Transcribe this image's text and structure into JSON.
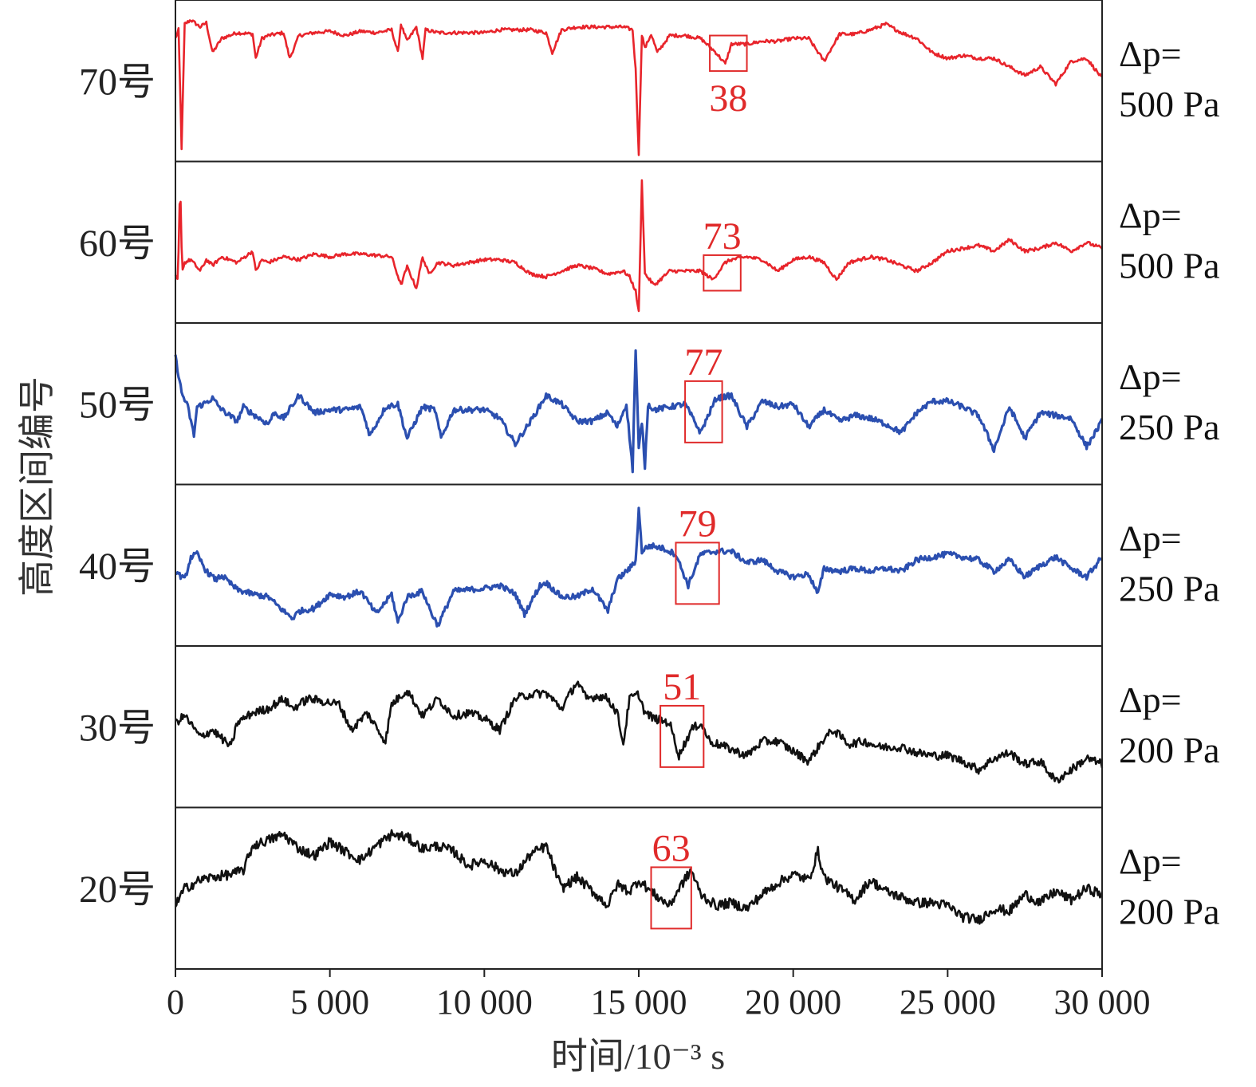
{
  "chart_data": {
    "type": "line",
    "xlabel": "时间/10⁻³ s",
    "ylabel": "高度区间编号",
    "xlim": [
      0,
      30000
    ],
    "x_ticks": [
      "0",
      "5 000",
      "10 000",
      "15 000",
      "20 000",
      "25 000",
      "30 000"
    ],
    "x_tick_values": [
      0,
      5000,
      10000,
      15000,
      20000,
      25000,
      30000
    ],
    "grid": false,
    "colors": {
      "red": "#e8242b",
      "blue": "#2b4fb0",
      "black": "#111111",
      "box": "#e02a2a"
    },
    "panels": [
      {
        "row_label": "70号",
        "pressure_line1": "Δp=",
        "pressure_line2": "500 Pa",
        "color": "red",
        "annotation": "38",
        "box_x": [
          17300,
          18500
        ],
        "x": [
          0,
          100,
          200,
          300,
          500,
          800,
          1000,
          1200,
          1500,
          2000,
          2500,
          2600,
          2800,
          3000,
          3500,
          3700,
          4000,
          4500,
          5000,
          5500,
          6000,
          6500,
          7000,
          7200,
          7300,
          7500,
          7800,
          8000,
          8100,
          8500,
          9000,
          9500,
          10000,
          10500,
          11000,
          11500,
          12000,
          12200,
          12500,
          13000,
          13500,
          14000,
          14500,
          14800,
          14900,
          15000,
          15100,
          15200,
          15400,
          15600,
          16000,
          16500,
          17000,
          17500,
          17800,
          18000,
          18500,
          19000,
          19500,
          20000,
          20500,
          21000,
          21500,
          22000,
          22500,
          23000,
          23500,
          24000,
          24500,
          25000,
          25500,
          26000,
          26500,
          27000,
          27500,
          28000,
          28500,
          29000,
          29500,
          30000
        ],
        "y": [
          0.82,
          0.88,
          0.05,
          0.92,
          0.95,
          0.9,
          0.93,
          0.72,
          0.82,
          0.86,
          0.85,
          0.68,
          0.82,
          0.84,
          0.86,
          0.68,
          0.84,
          0.86,
          0.87,
          0.84,
          0.87,
          0.86,
          0.88,
          0.72,
          0.92,
          0.8,
          0.9,
          0.68,
          0.88,
          0.86,
          0.86,
          0.86,
          0.86,
          0.88,
          0.88,
          0.88,
          0.86,
          0.72,
          0.88,
          0.9,
          0.9,
          0.9,
          0.9,
          0.88,
          0.6,
          0.0,
          0.85,
          0.75,
          0.85,
          0.72,
          0.84,
          0.84,
          0.82,
          0.72,
          0.64,
          0.78,
          0.78,
          0.8,
          0.8,
          0.82,
          0.82,
          0.66,
          0.85,
          0.85,
          0.88,
          0.92,
          0.86,
          0.82,
          0.72,
          0.68,
          0.7,
          0.68,
          0.68,
          0.62,
          0.56,
          0.62,
          0.5,
          0.66,
          0.68,
          0.54
        ],
        "noise": 0.012
      },
      {
        "row_label": "60号",
        "pressure_line1": "Δp=",
        "pressure_line2": "500 Pa",
        "color": "red",
        "annotation": "73",
        "box_x": [
          17100,
          18300
        ],
        "x": [
          0,
          80,
          150,
          220,
          300,
          500,
          800,
          1000,
          1200,
          1500,
          2000,
          2500,
          2600,
          2800,
          3000,
          3500,
          4000,
          4500,
          5000,
          5500,
          6000,
          7000,
          7300,
          7500,
          7800,
          8000,
          8200,
          8500,
          9000,
          9500,
          10000,
          10500,
          11000,
          11500,
          12000,
          12500,
          13000,
          13500,
          14000,
          14500,
          14700,
          14900,
          15000,
          15100,
          15200,
          15500,
          16000,
          16500,
          17000,
          17400,
          17800,
          18000,
          18500,
          19000,
          19500,
          20000,
          20500,
          21000,
          21400,
          21800,
          22500,
          23000,
          23500,
          24000,
          24500,
          25000,
          25500,
          26000,
          26500,
          27000,
          27500,
          28000,
          28500,
          29000,
          29500,
          30000
        ],
        "y": [
          0.28,
          0.25,
          0.95,
          0.32,
          0.38,
          0.4,
          0.32,
          0.4,
          0.36,
          0.42,
          0.38,
          0.46,
          0.32,
          0.4,
          0.38,
          0.42,
          0.4,
          0.44,
          0.42,
          0.44,
          0.44,
          0.42,
          0.22,
          0.35,
          0.2,
          0.42,
          0.3,
          0.38,
          0.36,
          0.38,
          0.4,
          0.4,
          0.38,
          0.3,
          0.28,
          0.32,
          0.36,
          0.34,
          0.3,
          0.32,
          0.28,
          0.18,
          0.03,
          0.95,
          0.3,
          0.22,
          0.32,
          0.32,
          0.32,
          0.26,
          0.38,
          0.4,
          0.42,
          0.4,
          0.32,
          0.4,
          0.42,
          0.38,
          0.26,
          0.38,
          0.42,
          0.4,
          0.36,
          0.32,
          0.38,
          0.46,
          0.48,
          0.5,
          0.46,
          0.54,
          0.46,
          0.48,
          0.52,
          0.46,
          0.52,
          0.48
        ],
        "noise": 0.012
      },
      {
        "row_label": "50号",
        "pressure_line1": "Δp=",
        "pressure_line2": "250 Pa",
        "color": "blue",
        "annotation": "77",
        "box_x": [
          16500,
          17700
        ],
        "x": [
          0,
          200,
          400,
          600,
          700,
          900,
          1200,
          1500,
          2000,
          2200,
          2500,
          3000,
          3200,
          3500,
          4000,
          4500,
          5000,
          5500,
          6000,
          6300,
          6800,
          7200,
          7500,
          8000,
          8400,
          8600,
          9000,
          9500,
          10000,
          10500,
          11000,
          11500,
          12000,
          12500,
          13000,
          13500,
          14000,
          14300,
          14600,
          14800,
          14900,
          15000,
          15100,
          15200,
          15300,
          15500,
          16000,
          16500,
          17000,
          17500,
          18000,
          18500,
          19000,
          19500,
          20000,
          20500,
          21000,
          21500,
          22000,
          22500,
          23000,
          23500,
          24000,
          24500,
          25000,
          25500,
          26000,
          26500,
          27000,
          27500,
          28000,
          28500,
          29000,
          29500,
          30000
        ],
        "y": [
          0.85,
          0.6,
          0.5,
          0.3,
          0.5,
          0.52,
          0.56,
          0.48,
          0.4,
          0.5,
          0.45,
          0.38,
          0.46,
          0.42,
          0.58,
          0.46,
          0.48,
          0.48,
          0.5,
          0.3,
          0.5,
          0.52,
          0.28,
          0.5,
          0.48,
          0.28,
          0.48,
          0.48,
          0.48,
          0.42,
          0.24,
          0.4,
          0.58,
          0.52,
          0.4,
          0.4,
          0.46,
          0.36,
          0.52,
          0.06,
          0.9,
          0.2,
          0.4,
          0.08,
          0.52,
          0.48,
          0.5,
          0.52,
          0.32,
          0.56,
          0.58,
          0.36,
          0.54,
          0.5,
          0.52,
          0.36,
          0.48,
          0.4,
          0.44,
          0.42,
          0.38,
          0.32,
          0.46,
          0.54,
          0.54,
          0.5,
          0.44,
          0.2,
          0.5,
          0.28,
          0.46,
          0.44,
          0.42,
          0.22,
          0.4
        ],
        "noise": 0.02
      },
      {
        "row_label": "40号",
        "pressure_line1": "Δp=",
        "pressure_line2": "250 Pa",
        "color": "blue",
        "annotation": "79",
        "box_x": [
          16200,
          17600
        ],
        "x": [
          0,
          300,
          500,
          700,
          1000,
          1300,
          1500,
          2000,
          2500,
          3000,
          3500,
          3800,
          4000,
          4500,
          5000,
          5500,
          6000,
          6500,
          7000,
          7200,
          7500,
          8000,
          8300,
          8500,
          9000,
          9500,
          10000,
          10500,
          11000,
          11300,
          11800,
          12000,
          12500,
          13000,
          13500,
          14000,
          14300,
          14700,
          14900,
          15000,
          15100,
          15200,
          15400,
          15800,
          16200,
          16600,
          17000,
          17500,
          18000,
          18500,
          19000,
          19500,
          20000,
          20500,
          20800,
          21000,
          21500,
          22000,
          22500,
          23000,
          23500,
          24000,
          24500,
          25000,
          25500,
          26000,
          26500,
          27000,
          27500,
          28000,
          28500,
          29000,
          29500,
          30000
        ],
        "y": [
          0.48,
          0.42,
          0.58,
          0.6,
          0.48,
          0.42,
          0.45,
          0.35,
          0.32,
          0.3,
          0.2,
          0.15,
          0.2,
          0.22,
          0.32,
          0.3,
          0.34,
          0.18,
          0.32,
          0.12,
          0.3,
          0.34,
          0.18,
          0.1,
          0.34,
          0.35,
          0.36,
          0.38,
          0.32,
          0.18,
          0.38,
          0.4,
          0.3,
          0.3,
          0.36,
          0.2,
          0.42,
          0.5,
          0.55,
          0.92,
          0.62,
          0.64,
          0.66,
          0.64,
          0.6,
          0.38,
          0.6,
          0.62,
          0.62,
          0.54,
          0.56,
          0.48,
          0.44,
          0.46,
          0.32,
          0.5,
          0.48,
          0.5,
          0.48,
          0.5,
          0.48,
          0.56,
          0.58,
          0.6,
          0.58,
          0.56,
          0.48,
          0.56,
          0.44,
          0.52,
          0.58,
          0.5,
          0.44,
          0.58
        ],
        "noise": 0.02
      },
      {
        "row_label": "30号",
        "pressure_line1": "Δp=",
        "pressure_line2": "200 Pa",
        "color": "black",
        "annotation": "51",
        "box_x": [
          15700,
          17100
        ],
        "x": [
          0,
          300,
          800,
          1200,
          1800,
          2000,
          2500,
          3000,
          3500,
          3800,
          4300,
          4800,
          5300,
          5700,
          6200,
          6800,
          7000,
          7500,
          8000,
          8500,
          9000,
          9500,
          10000,
          10500,
          11000,
          11500,
          12000,
          12500,
          13000,
          13300,
          13700,
          14000,
          14300,
          14500,
          14700,
          15000,
          15200,
          15500,
          16000,
          16300,
          16700,
          17000,
          17300,
          17800,
          18500,
          19000,
          19500,
          20000,
          20500,
          21000,
          21300,
          21800,
          22300,
          22800,
          23500,
          24000,
          24500,
          25000,
          25500,
          26000,
          26500,
          27000,
          27500,
          28000,
          28500,
          29000,
          29500,
          30000
        ],
        "y": [
          0.55,
          0.6,
          0.45,
          0.5,
          0.38,
          0.55,
          0.62,
          0.65,
          0.72,
          0.65,
          0.72,
          0.7,
          0.68,
          0.5,
          0.62,
          0.42,
          0.68,
          0.78,
          0.6,
          0.72,
          0.6,
          0.62,
          0.58,
          0.5,
          0.72,
          0.75,
          0.76,
          0.65,
          0.84,
          0.72,
          0.74,
          0.72,
          0.62,
          0.4,
          0.72,
          0.75,
          0.62,
          0.58,
          0.55,
          0.32,
          0.5,
          0.55,
          0.42,
          0.38,
          0.32,
          0.42,
          0.42,
          0.35,
          0.28,
          0.44,
          0.5,
          0.4,
          0.42,
          0.38,
          0.38,
          0.34,
          0.32,
          0.32,
          0.28,
          0.22,
          0.3,
          0.34,
          0.26,
          0.28,
          0.14,
          0.22,
          0.3,
          0.26
        ],
        "noise": 0.03
      },
      {
        "row_label": "20号",
        "pressure_line1": "Δp=",
        "pressure_line2": "200 Pa",
        "color": "black",
        "annotation": "63",
        "box_x": [
          15400,
          16700
        ],
        "x": [
          0,
          300,
          800,
          1200,
          1800,
          2200,
          2500,
          3000,
          3500,
          4000,
          4500,
          5000,
          5500,
          6000,
          6500,
          7000,
          7500,
          8000,
          8500,
          9000,
          9500,
          10000,
          10500,
          11000,
          11500,
          12000,
          12500,
          13000,
          13500,
          14000,
          14300,
          14700,
          15000,
          15500,
          16000,
          16300,
          16700,
          17000,
          17500,
          18000,
          18500,
          19000,
          19500,
          20000,
          20500,
          20800,
          21000,
          21500,
          22000,
          22500,
          23000,
          23500,
          24000,
          24500,
          25000,
          25500,
          26000,
          26500,
          27000,
          27500,
          28000,
          28500,
          29000,
          29500,
          30000
        ],
        "y": [
          0.4,
          0.52,
          0.58,
          0.6,
          0.62,
          0.65,
          0.82,
          0.86,
          0.9,
          0.8,
          0.75,
          0.85,
          0.78,
          0.72,
          0.82,
          0.9,
          0.88,
          0.8,
          0.82,
          0.78,
          0.68,
          0.72,
          0.65,
          0.62,
          0.76,
          0.82,
          0.52,
          0.6,
          0.5,
          0.4,
          0.55,
          0.5,
          0.58,
          0.48,
          0.4,
          0.52,
          0.65,
          0.48,
          0.4,
          0.42,
          0.38,
          0.48,
          0.56,
          0.62,
          0.58,
          0.78,
          0.6,
          0.52,
          0.44,
          0.58,
          0.5,
          0.46,
          0.42,
          0.42,
          0.4,
          0.32,
          0.3,
          0.38,
          0.36,
          0.48,
          0.42,
          0.5,
          0.44,
          0.52,
          0.48
        ],
        "noise": 0.035
      }
    ]
  }
}
